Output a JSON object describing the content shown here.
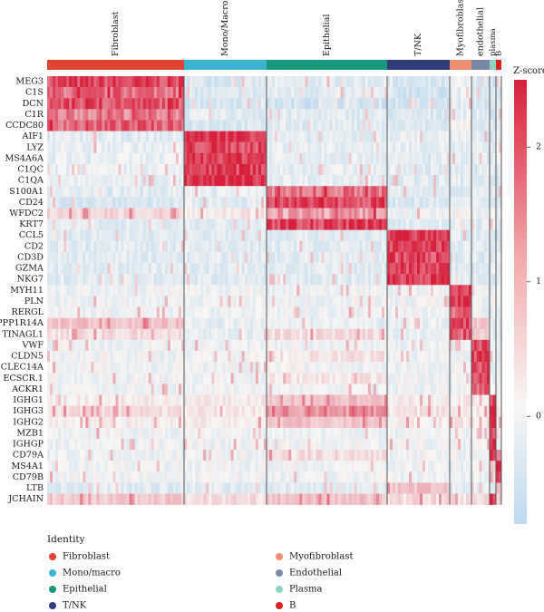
{
  "chart_data": {
    "type": "heatmap",
    "title": "",
    "clusters": [
      {
        "label": "Fibroblast",
        "width": 151,
        "color": "#e0432f"
      },
      {
        "label": "Mono/Macro",
        "width": 91,
        "color": "#3db3d2"
      },
      {
        "label": "Epithelial",
        "width": 133,
        "color": "#17987d"
      },
      {
        "label": "T/NK",
        "width": 69,
        "color": "#2f3d7d"
      },
      {
        "label": "Myofibroblast",
        "width": 24,
        "color": "#ef8c71"
      },
      {
        "label": "endothelial",
        "width": 20,
        "color": "#7b87a8"
      },
      {
        "label": "plasma",
        "width": 7,
        "color": "#8ed2c0"
      },
      {
        "label": "B",
        "width": 6,
        "color": "#dc2020"
      }
    ],
    "genes": [
      "MEG3",
      "C1S",
      "DCN",
      "C1R",
      "CCDC80",
      "AIF1",
      "LYZ",
      "MS4A6A",
      "C1QC",
      "C1QA",
      "S100A1",
      "CD24",
      "WFDC2",
      "KRT7",
      "CCL5",
      "CD2",
      "CD3D",
      "GZMA",
      "NKG7",
      "MYH11",
      "PLN",
      "RERGL",
      "PPP1R14A",
      "TINAGL1",
      "VWF",
      "CLDN5",
      "CLEC14A",
      "ECSCR.1",
      "ACKR1",
      "IGHG1",
      "IGHG3",
      "IGHG2",
      "MZB1",
      "IGHGP",
      "CD79A",
      "MS4A1",
      "CD79B",
      "LTB",
      "JCHAIN"
    ],
    "values": [
      [
        2.0,
        -0.4,
        -0.3,
        -0.5,
        -0.2,
        -0.4,
        -0.5,
        -0.4
      ],
      [
        1.6,
        -0.4,
        -0.3,
        -0.5,
        -0.2,
        -0.4,
        -0.5,
        -0.4
      ],
      [
        1.9,
        -0.4,
        -0.5,
        -0.5,
        -0.3,
        -0.4,
        -0.5,
        -0.4
      ],
      [
        1.4,
        -0.3,
        -0.3,
        -0.4,
        -0.2,
        -0.3,
        -0.4,
        -0.4
      ],
      [
        1.7,
        -0.4,
        -0.3,
        -0.4,
        0.0,
        -0.3,
        -0.4,
        -0.4
      ],
      [
        -0.3,
        2.3,
        -0.3,
        -0.2,
        -0.3,
        -0.2,
        -0.3,
        -0.3
      ],
      [
        -0.2,
        2.0,
        -0.2,
        -0.2,
        -0.3,
        -0.3,
        -0.3,
        -0.3
      ],
      [
        -0.2,
        2.2,
        -0.2,
        -0.3,
        -0.3,
        -0.3,
        -0.3,
        -0.3
      ],
      [
        -0.2,
        2.1,
        -0.2,
        -0.3,
        -0.3,
        -0.3,
        -0.3,
        -0.3
      ],
      [
        -0.2,
        2.3,
        -0.2,
        -0.3,
        -0.3,
        -0.3,
        -0.3,
        -0.3
      ],
      [
        -0.3,
        -0.2,
        1.5,
        -0.3,
        -0.3,
        -0.3,
        -0.3,
        -0.3
      ],
      [
        -0.4,
        -0.3,
        2.0,
        -0.4,
        -0.3,
        -0.3,
        -0.3,
        -0.3
      ],
      [
        0.4,
        0.2,
        1.0,
        -0.1,
        -0.1,
        -0.1,
        -0.1,
        -0.1
      ],
      [
        -0.3,
        -0.3,
        2.1,
        -0.3,
        -0.3,
        -0.3,
        -0.3,
        -0.3
      ],
      [
        -0.3,
        -0.3,
        -0.3,
        2.2,
        -0.3,
        -0.3,
        -0.3,
        -0.3
      ],
      [
        -0.3,
        -0.3,
        -0.3,
        2.0,
        -0.3,
        -0.3,
        -0.3,
        -0.3
      ],
      [
        -0.3,
        -0.3,
        -0.3,
        2.0,
        -0.3,
        -0.3,
        -0.3,
        -0.3
      ],
      [
        -0.3,
        -0.3,
        -0.3,
        2.1,
        -0.3,
        -0.3,
        -0.3,
        -0.3
      ],
      [
        -0.3,
        -0.3,
        -0.3,
        2.2,
        -0.3,
        -0.3,
        -0.3,
        -0.3
      ],
      [
        -0.1,
        -0.1,
        -0.1,
        -0.1,
        2.2,
        -0.1,
        -0.1,
        -0.1
      ],
      [
        -0.1,
        -0.1,
        -0.1,
        -0.1,
        2.3,
        -0.1,
        -0.1,
        -0.1
      ],
      [
        -0.1,
        -0.1,
        -0.1,
        -0.1,
        1.6,
        -0.1,
        -0.1,
        -0.1
      ],
      [
        0.6,
        -0.2,
        -0.2,
        -0.2,
        2.0,
        0.6,
        -0.2,
        -0.2
      ],
      [
        0.3,
        -0.2,
        0.3,
        -0.2,
        1.8,
        0.5,
        -0.2,
        -0.2
      ],
      [
        -0.1,
        -0.1,
        -0.1,
        -0.1,
        -0.1,
        2.0,
        -0.1,
        -0.1
      ],
      [
        -0.1,
        -0.1,
        0.2,
        -0.1,
        -0.1,
        2.1,
        -0.1,
        -0.1
      ],
      [
        -0.1,
        -0.1,
        -0.1,
        -0.1,
        -0.1,
        2.0,
        -0.1,
        -0.1
      ],
      [
        -0.1,
        -0.1,
        0.2,
        -0.1,
        -0.1,
        2.0,
        -0.1,
        -0.1
      ],
      [
        -0.1,
        -0.1,
        -0.1,
        -0.1,
        -0.1,
        1.7,
        -0.1,
        -0.1
      ],
      [
        0.1,
        0.1,
        0.6,
        0.1,
        0.1,
        0.1,
        2.3,
        0.1
      ],
      [
        0.3,
        0.2,
        1.2,
        0.2,
        0.2,
        0.2,
        2.3,
        0.2
      ],
      [
        0.1,
        0.1,
        0.6,
        0.1,
        0.1,
        0.1,
        2.3,
        0.1
      ],
      [
        -0.1,
        -0.1,
        -0.1,
        -0.1,
        -0.1,
        -0.1,
        2.2,
        0.3
      ],
      [
        -0.1,
        -0.1,
        -0.1,
        -0.1,
        -0.1,
        -0.1,
        2.1,
        -0.1
      ],
      [
        -0.1,
        -0.1,
        0.3,
        -0.1,
        -0.1,
        -0.1,
        2.0,
        0.8
      ],
      [
        -0.1,
        -0.1,
        -0.1,
        -0.1,
        -0.1,
        -0.1,
        0.5,
        2.3
      ],
      [
        -0.1,
        -0.1,
        -0.1,
        -0.1,
        -0.1,
        -0.1,
        0.3,
        2.0
      ],
      [
        -0.3,
        -0.3,
        -0.3,
        0.6,
        -0.3,
        -0.3,
        -0.3,
        1.0
      ],
      [
        0.5,
        0.3,
        0.6,
        0.3,
        0.3,
        0.3,
        2.3,
        0.4
      ]
    ],
    "colorbar": {
      "title": "Z-score",
      "ticks": [
        2,
        1,
        0
      ],
      "range": [
        -0.8,
        2.5
      ],
      "low_color": "#bcd9ee",
      "mid_color": "#f8f6f4",
      "high_color": "#d71f3c"
    },
    "legend": {
      "title": "Identity",
      "items": [
        {
          "label": "Fibroblast",
          "color": "#e0432f"
        },
        {
          "label": "Myofibroblast",
          "color": "#ef8c71"
        },
        {
          "label": "Mono/macro",
          "color": "#3db3d2"
        },
        {
          "label": "Endothelial",
          "color": "#7b87a8"
        },
        {
          "label": "Epithelial",
          "color": "#17987d"
        },
        {
          "label": "Plasma",
          "color": "#8ed2c0"
        },
        {
          "label": "T/NK",
          "color": "#2f3d7d"
        },
        {
          "label": "B",
          "color": "#dc2020"
        }
      ]
    }
  }
}
